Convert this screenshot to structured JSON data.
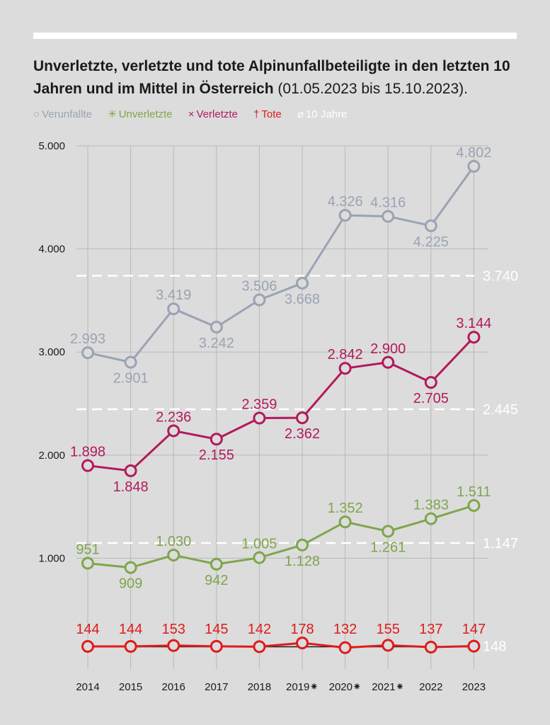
{
  "header": {
    "title_bold": "Unverletzte, verletzte und tote Alpinunfallbeteiligte in den letzten 10 Jahren und im Mittel in Österreich",
    "title_rest": " (01.05.2023 bis 15.10.2023)."
  },
  "legend": [
    {
      "symbol": "○",
      "label": "Verunfallte",
      "color": "#9aa3b4"
    },
    {
      "symbol": "✳",
      "label": "Unverletzte",
      "color": "#7ea64c"
    },
    {
      "symbol": "×",
      "label": "Verletzte",
      "color": "#b3195e"
    },
    {
      "symbol": "†",
      "label": "Tote",
      "color": "#e01b1b"
    },
    {
      "symbol": "⌀",
      "label": "10 Jahre",
      "color": "#ffffff"
    }
  ],
  "chart_data": {
    "type": "line",
    "x": [
      "2014",
      "2015",
      "2016",
      "2017",
      "2018",
      "2019⁕",
      "2020⁕",
      "2021⁕",
      "2022",
      "2023"
    ],
    "ylim": [
      0,
      5000
    ],
    "y_ticks": [
      "1.000",
      "2.000",
      "3.000",
      "4.000",
      "5.000"
    ],
    "y_tick_values": [
      1000,
      2000,
      3000,
      4000,
      5000
    ],
    "grid": true,
    "series": [
      {
        "name": "Verunfallte",
        "color": "#9aa3b4",
        "values": [
          2993,
          2901,
          3419,
          3242,
          3506,
          3668,
          4326,
          4316,
          4225,
          4802
        ],
        "labels": [
          "2.993",
          "2.901",
          "3.419",
          "3.242",
          "3.506",
          "3.668",
          "4.326",
          "4.316",
          "4.225",
          "4.802"
        ],
        "label_pos": [
          "above",
          "below",
          "above",
          "below",
          "above",
          "below",
          "above",
          "above",
          "below",
          "above"
        ]
      },
      {
        "name": "Verletzte",
        "color": "#b3195e",
        "values": [
          1898,
          1848,
          2236,
          2155,
          2359,
          2362,
          2842,
          2900,
          2705,
          3144
        ],
        "labels": [
          "1.898",
          "1.848",
          "2.236",
          "2.155",
          "2.359",
          "2.362",
          "2.842",
          "2.900",
          "2.705",
          "3.144"
        ],
        "label_pos": [
          "above",
          "below",
          "above",
          "below",
          "above",
          "below",
          "above",
          "above",
          "below",
          "above"
        ]
      },
      {
        "name": "Unverletzte",
        "color": "#7ea64c",
        "values": [
          951,
          909,
          1030,
          942,
          1005,
          1128,
          1352,
          1261,
          1383,
          1511
        ],
        "labels": [
          "951",
          "909",
          "1.030",
          "942",
          "1.005",
          "1.128",
          "1.352",
          "1.261",
          "1.383",
          "1.511"
        ],
        "label_pos": [
          "above",
          "below",
          "above",
          "below",
          "above",
          "below",
          "above",
          "below",
          "above",
          "above"
        ]
      },
      {
        "name": "Tote",
        "color": "#e01b1b",
        "values": [
          144,
          144,
          153,
          145,
          142,
          178,
          132,
          155,
          137,
          147
        ],
        "labels": [
          "144",
          "144",
          "153",
          "145",
          "142",
          "178",
          "132",
          "155",
          "137",
          "147"
        ],
        "label_pos": [
          "above",
          "above",
          "above",
          "above",
          "above",
          "above",
          "above",
          "above",
          "above",
          "above"
        ]
      }
    ],
    "reference_lines": [
      {
        "value": 3740,
        "label": "3.740"
      },
      {
        "value": 2445,
        "label": "2.445"
      },
      {
        "value": 1147,
        "label": "1.147"
      },
      {
        "value": 148,
        "label": "148"
      }
    ]
  }
}
